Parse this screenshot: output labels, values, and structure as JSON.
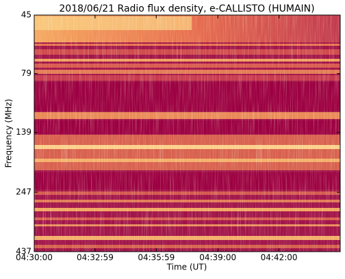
{
  "chart_data": {
    "type": "spectrogram",
    "title": "2018/06/21  Radio flux density, e-CALLISTO (HUMAIN)",
    "x_label": "Time (UT)",
    "y_label": "Frequency (MHz)",
    "xlim": [
      16200,
      17100
    ],
    "xticks": [
      {
        "value": 16200,
        "label": "04:30:00"
      },
      {
        "value": 16379,
        "label": "04:32:59"
      },
      {
        "value": 16559,
        "label": "04:35:59"
      },
      {
        "value": 16740,
        "label": "04:39:00"
      },
      {
        "value": 16920,
        "label": "04:42:00"
      }
    ],
    "ylim": [
      45,
      437
    ],
    "y_log": true,
    "y_inverted": true,
    "yticks": [
      45,
      79,
      139,
      247,
      437
    ]
  }
}
